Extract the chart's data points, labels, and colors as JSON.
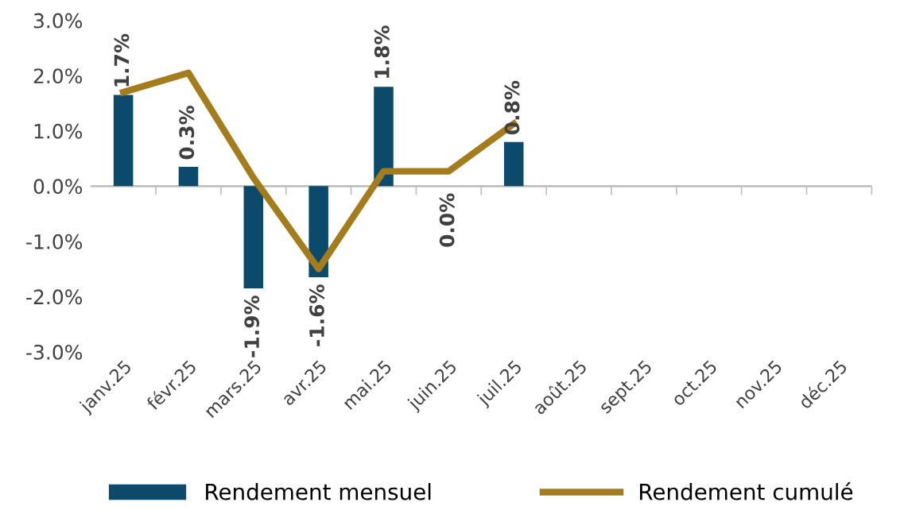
{
  "chart_data": {
    "type": "bar",
    "categories": [
      "janv.25",
      "févr.25",
      "mars.25",
      "avr.25",
      "mai.25",
      "juin.25",
      "juil.25",
      "août.25",
      "sept.25",
      "oct.25",
      "nov.25",
      "déc.25"
    ],
    "series": [
      {
        "name": "Rendement mensuel",
        "type": "bar",
        "color": "#0b4a6b",
        "values": [
          1.65,
          0.35,
          -1.85,
          -1.65,
          1.8,
          0.0,
          0.8,
          null,
          null,
          null,
          null,
          null
        ],
        "value_labels": [
          "1.7%",
          "0.3%",
          "-1.9%",
          "-1.6%",
          "1.8%",
          "0.0%",
          "0.8%",
          null,
          null,
          null,
          null,
          null
        ]
      },
      {
        "name": "Rendement cumulé",
        "type": "line",
        "color": "#a57c1b",
        "values": [
          1.7,
          2.05,
          0.15,
          -1.5,
          0.27,
          0.27,
          1.13,
          null,
          null,
          null,
          null,
          null
        ]
      }
    ],
    "ylim": [
      -3,
      3
    ],
    "yticks": [
      {
        "value": -3,
        "label": "-3.0%"
      },
      {
        "value": -2,
        "label": "-2.0%"
      },
      {
        "value": -1,
        "label": "-1.0%"
      },
      {
        "value": 0,
        "label": "0.0%"
      },
      {
        "value": 1,
        "label": "1.0%"
      },
      {
        "value": 2,
        "label": "2.0%"
      },
      {
        "value": 3,
        "label": "3.0%"
      }
    ],
    "grid": false,
    "ref_lines": [
      {
        "axis": "y",
        "value": 0,
        "color": "#bfbfbf"
      }
    ],
    "legend": "bottom",
    "marker": "none",
    "line_style": "solid"
  }
}
